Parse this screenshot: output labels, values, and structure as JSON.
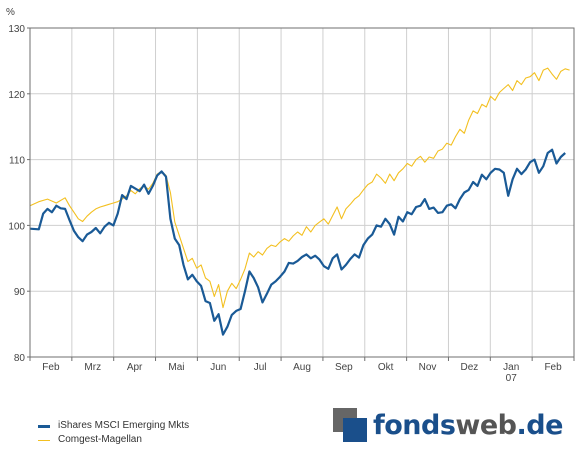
{
  "chart_data": {
    "type": "line",
    "y_unit": "%",
    "ylim": [
      80,
      130
    ],
    "yticks": [
      "80",
      "90",
      "100",
      "110",
      "120",
      "130"
    ],
    "xticks": [
      "Feb",
      "Mrz",
      "Apr",
      "Mai",
      "Jun",
      "Jul",
      "Aug",
      "Sep",
      "Okt",
      "Nov",
      "Dez",
      "Jan",
      "Feb"
    ],
    "xtick_sublabel": {
      "Jan": "07"
    },
    "grid": true,
    "legend_position": "bottom-left",
    "series": [
      {
        "name": "iShares MSCI Emerging Mkts",
        "color": "#1a5a96",
        "points": [
          [
            0,
            99.5
          ],
          [
            2,
            99.4
          ],
          [
            3,
            101.8
          ],
          [
            4,
            102.5
          ],
          [
            5,
            102.0
          ],
          [
            6,
            103.0
          ],
          [
            7,
            102.6
          ],
          [
            8,
            102.5
          ],
          [
            9,
            100.8
          ],
          [
            10,
            99.2
          ],
          [
            11,
            98.2
          ],
          [
            12,
            97.6
          ],
          [
            13,
            98.6
          ],
          [
            14,
            99.0
          ],
          [
            15,
            99.6
          ],
          [
            16,
            98.8
          ],
          [
            17,
            99.8
          ],
          [
            18,
            100.4
          ],
          [
            19,
            100.0
          ],
          [
            20,
            101.8
          ],
          [
            21,
            104.6
          ],
          [
            22,
            104.0
          ],
          [
            23,
            106.0
          ],
          [
            24,
            105.6
          ],
          [
            25,
            105.2
          ],
          [
            26,
            106.2
          ],
          [
            27,
            104.8
          ],
          [
            28,
            106.0
          ],
          [
            29,
            107.6
          ],
          [
            30,
            108.2
          ],
          [
            31,
            107.4
          ],
          [
            32,
            101.0
          ],
          [
            33,
            98.0
          ],
          [
            34,
            97.0
          ],
          [
            35,
            94.0
          ],
          [
            36,
            91.8
          ],
          [
            37,
            92.5
          ],
          [
            38,
            91.5
          ],
          [
            39,
            90.8
          ],
          [
            40,
            88.5
          ],
          [
            41,
            88.2
          ],
          [
            42,
            85.5
          ],
          [
            43,
            86.5
          ],
          [
            44,
            83.4
          ],
          [
            45,
            84.6
          ],
          [
            46,
            86.4
          ],
          [
            47,
            87.0
          ],
          [
            48,
            87.3
          ],
          [
            49,
            90.0
          ],
          [
            50,
            93.0
          ],
          [
            51,
            92.0
          ],
          [
            52,
            90.6
          ],
          [
            53,
            88.3
          ],
          [
            54,
            89.6
          ],
          [
            55,
            91.0
          ],
          [
            56,
            91.5
          ],
          [
            57,
            92.2
          ],
          [
            58,
            93.0
          ],
          [
            59,
            94.3
          ],
          [
            60,
            94.2
          ],
          [
            61,
            94.6
          ],
          [
            62,
            95.2
          ],
          [
            63,
            95.6
          ],
          [
            64,
            95.0
          ],
          [
            65,
            95.4
          ],
          [
            66,
            94.8
          ],
          [
            67,
            93.8
          ],
          [
            68,
            93.4
          ],
          [
            69,
            95.0
          ],
          [
            70,
            95.6
          ],
          [
            71,
            93.3
          ],
          [
            72,
            94.0
          ],
          [
            73,
            94.9
          ],
          [
            74,
            95.6
          ],
          [
            75,
            95.1
          ],
          [
            76,
            97.0
          ],
          [
            77,
            98.0
          ],
          [
            78,
            98.6
          ],
          [
            79,
            100.0
          ],
          [
            80,
            99.8
          ],
          [
            81,
            101.0
          ],
          [
            82,
            100.2
          ],
          [
            83,
            98.6
          ],
          [
            84,
            101.3
          ],
          [
            85,
            100.6
          ],
          [
            86,
            102.0
          ],
          [
            87,
            101.7
          ],
          [
            88,
            102.8
          ],
          [
            89,
            103.0
          ],
          [
            90,
            104.0
          ],
          [
            91,
            102.5
          ],
          [
            92,
            102.7
          ],
          [
            93,
            101.9
          ],
          [
            94,
            102.0
          ],
          [
            95,
            103.0
          ],
          [
            96,
            103.2
          ],
          [
            97,
            102.6
          ],
          [
            98,
            104.0
          ],
          [
            99,
            105.0
          ],
          [
            100,
            105.4
          ],
          [
            101,
            106.6
          ],
          [
            102,
            106.0
          ],
          [
            103,
            107.7
          ],
          [
            104,
            107.0
          ],
          [
            105,
            108.0
          ],
          [
            106,
            108.6
          ],
          [
            107,
            108.5
          ],
          [
            108,
            108.0
          ],
          [
            109,
            104.5
          ],
          [
            110,
            107.0
          ],
          [
            111,
            108.6
          ],
          [
            112,
            107.8
          ],
          [
            113,
            108.5
          ],
          [
            114,
            109.6
          ],
          [
            115,
            110.0
          ],
          [
            116,
            108.0
          ],
          [
            117,
            109.0
          ],
          [
            118,
            111.0
          ],
          [
            119,
            111.5
          ],
          [
            120,
            109.4
          ],
          [
            121,
            110.4
          ],
          [
            122,
            111.0
          ]
        ]
      },
      {
        "name": "Comgest-Magellan",
        "color": "#f3c021",
        "points": [
          [
            0,
            103.0
          ],
          [
            2,
            103.6
          ],
          [
            4,
            104.0
          ],
          [
            6,
            103.4
          ],
          [
            8,
            104.2
          ],
          [
            9,
            103.0
          ],
          [
            10,
            102.0
          ],
          [
            11,
            101.0
          ],
          [
            12,
            100.6
          ],
          [
            13,
            101.4
          ],
          [
            14,
            102.0
          ],
          [
            15,
            102.5
          ],
          [
            16,
            102.8
          ],
          [
            17,
            103.0
          ],
          [
            18,
            103.2
          ],
          [
            19,
            103.4
          ],
          [
            20,
            103.6
          ],
          [
            21,
            104.0
          ],
          [
            22,
            104.5
          ],
          [
            23,
            105.3
          ],
          [
            24,
            104.8
          ],
          [
            25,
            105.6
          ],
          [
            26,
            106.0
          ],
          [
            27,
            105.5
          ],
          [
            28,
            106.4
          ],
          [
            29,
            107.8
          ],
          [
            30,
            108.2
          ],
          [
            31,
            107.6
          ],
          [
            32,
            105.0
          ],
          [
            33,
            100.5
          ],
          [
            34,
            98.5
          ],
          [
            35,
            96.5
          ],
          [
            36,
            94.5
          ],
          [
            37,
            95.0
          ],
          [
            38,
            93.5
          ],
          [
            39,
            94.0
          ],
          [
            40,
            92.0
          ],
          [
            41,
            91.5
          ],
          [
            42,
            89.2
          ],
          [
            43,
            91.0
          ],
          [
            44,
            87.5
          ],
          [
            45,
            90.0
          ],
          [
            46,
            91.2
          ],
          [
            47,
            90.4
          ],
          [
            48,
            91.8
          ],
          [
            49,
            93.4
          ],
          [
            50,
            95.8
          ],
          [
            51,
            95.2
          ],
          [
            52,
            96.0
          ],
          [
            53,
            95.5
          ],
          [
            54,
            96.5
          ],
          [
            55,
            97.0
          ],
          [
            56,
            96.8
          ],
          [
            57,
            97.5
          ],
          [
            58,
            98.0
          ],
          [
            59,
            97.6
          ],
          [
            60,
            98.4
          ],
          [
            61,
            99.0
          ],
          [
            62,
            98.5
          ],
          [
            63,
            99.8
          ],
          [
            64,
            99.0
          ],
          [
            65,
            100.0
          ],
          [
            66,
            100.5
          ],
          [
            67,
            101.0
          ],
          [
            68,
            100.2
          ],
          [
            69,
            101.5
          ],
          [
            70,
            102.8
          ],
          [
            71,
            101.0
          ],
          [
            72,
            102.5
          ],
          [
            73,
            103.2
          ],
          [
            74,
            104.0
          ],
          [
            75,
            104.5
          ],
          [
            76,
            105.4
          ],
          [
            77,
            106.2
          ],
          [
            78,
            106.6
          ],
          [
            79,
            107.8
          ],
          [
            80,
            107.2
          ],
          [
            81,
            106.4
          ],
          [
            82,
            107.8
          ],
          [
            83,
            106.8
          ],
          [
            84,
            108.0
          ],
          [
            85,
            108.6
          ],
          [
            86,
            109.4
          ],
          [
            87,
            109.0
          ],
          [
            88,
            110.0
          ],
          [
            89,
            110.5
          ],
          [
            90,
            109.6
          ],
          [
            91,
            110.4
          ],
          [
            92,
            110.2
          ],
          [
            93,
            111.3
          ],
          [
            94,
            111.6
          ],
          [
            95,
            112.5
          ],
          [
            96,
            112.2
          ],
          [
            97,
            113.5
          ],
          [
            98,
            114.6
          ],
          [
            99,
            114.0
          ],
          [
            100,
            116.0
          ],
          [
            101,
            117.4
          ],
          [
            102,
            117.0
          ],
          [
            103,
            118.4
          ],
          [
            104,
            118.0
          ],
          [
            105,
            119.6
          ],
          [
            106,
            119.0
          ],
          [
            107,
            120.2
          ],
          [
            108,
            120.8
          ],
          [
            109,
            121.4
          ],
          [
            110,
            120.5
          ],
          [
            111,
            122.0
          ],
          [
            112,
            121.4
          ],
          [
            113,
            122.4
          ],
          [
            114,
            122.6
          ],
          [
            115,
            123.2
          ],
          [
            116,
            122.0
          ],
          [
            117,
            123.6
          ],
          [
            118,
            123.9
          ],
          [
            119,
            123.0
          ],
          [
            120,
            122.2
          ],
          [
            121,
            123.4
          ],
          [
            122,
            123.8
          ],
          [
            123,
            123.6
          ]
        ]
      }
    ]
  },
  "logo": {
    "part1": "fonds",
    "part2": "web",
    "part3": ".de"
  }
}
